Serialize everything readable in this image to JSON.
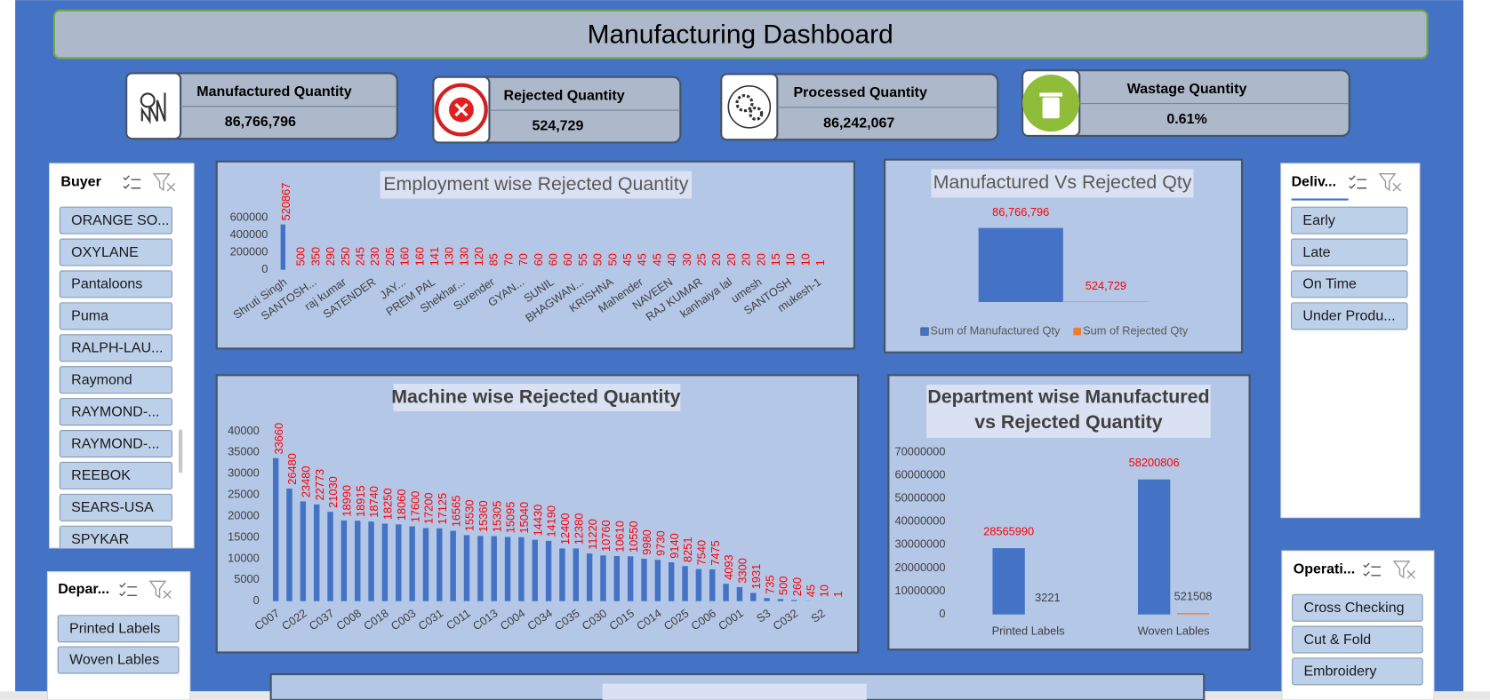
{
  "header": {
    "title": "Manufacturing Dashboard"
  },
  "kpis": [
    {
      "label": "Manufactured Quantity",
      "value": "86,766,796"
    },
    {
      "label": "Rejected Quantity",
      "value": "524,729"
    },
    {
      "label": "Processed Quantity",
      "value": "86,242,067"
    },
    {
      "label": "Wastage Quantity",
      "value": "0.61%"
    }
  ],
  "slicers": [
    {
      "title": "Buyer",
      "items": [
        "ORANGE SO...",
        "OXYLANE",
        "Pantaloons",
        "Puma",
        "RALPH-LAU...",
        "Raymond",
        "RAYMOND-...",
        "RAYMOND-...",
        "REEBOK",
        "SEARS-USA",
        "SPYKAR"
      ]
    },
    {
      "title": "Deliv...",
      "items": [
        "Early",
        "Late",
        "On Time",
        "Under Produ..."
      ]
    },
    {
      "title": "Depar...",
      "items": [
        "Printed Labels",
        "Woven Lables"
      ]
    },
    {
      "title": "Operati...",
      "items": [
        "Cross Checking",
        "Cut  & Fold",
        "Embroidery"
      ]
    }
  ],
  "chart_data": [
    {
      "type": "bar",
      "title": "Employment wise Rejected Quantity",
      "color": "#4472c4",
      "categories": [
        "Shruti Singh",
        null,
        "SANTOSH...",
        null,
        "raj  kumar",
        null,
        "SATENDER",
        null,
        "JAY...",
        null,
        "PREM PAL",
        null,
        "Shekhar...",
        null,
        "Surender",
        null,
        "GYAN...",
        null,
        "SUNIL",
        null,
        "BHAGWAN...",
        null,
        "KRISHNA",
        null,
        "Mahender",
        null,
        "NAVEEN",
        null,
        "RAJ KUMAR",
        null,
        "kanhaiya lal",
        null,
        "umesh",
        null,
        "SANTOSH",
        null,
        "mukesh-1"
      ],
      "values": [
        520867,
        500,
        350,
        290,
        250,
        245,
        230,
        205,
        160,
        160,
        141,
        130,
        130,
        120,
        85,
        70,
        70,
        60,
        60,
        60,
        55,
        50,
        50,
        45,
        45,
        45,
        40,
        30,
        25,
        20,
        20,
        20,
        20,
        15,
        10,
        10,
        1
      ],
      "ylim": [
        0,
        600000
      ],
      "yticks": [
        0,
        200000,
        400000,
        600000
      ]
    },
    {
      "type": "bar",
      "title": "Manufactured Vs Rejected Qty",
      "legend": "bottom",
      "series": [
        {
          "name": "Sum of Manufactured Qty",
          "color": "#4472c4",
          "values": [
            86766796
          ],
          "value_labels": [
            "86,766,796"
          ]
        },
        {
          "name": "Sum of Rejected Qty",
          "color": "#ed7d31",
          "values": [
            524729
          ],
          "value_labels": [
            "524,729"
          ]
        }
      ]
    },
    {
      "type": "bar",
      "title": "Machine wise Rejected Quantity",
      "color": "#4472c4",
      "categories": [
        "C007",
        null,
        "C022",
        null,
        "C037",
        null,
        "C008",
        null,
        "C018",
        null,
        "C003",
        null,
        "C031",
        null,
        "C011",
        null,
        "C013",
        null,
        "C004",
        null,
        "C034",
        null,
        "C035",
        null,
        "C030",
        null,
        "C015",
        null,
        "C014",
        null,
        "C025",
        null,
        "C006",
        null,
        "C001",
        null,
        "S3",
        null,
        "C032",
        null,
        "S2",
        null
      ],
      "values": [
        33660,
        26480,
        23480,
        22773,
        21030,
        18990,
        18915,
        18740,
        18250,
        18060,
        17600,
        17200,
        17125,
        16565,
        15530,
        15360,
        15305,
        15095,
        15040,
        14430,
        14190,
        12400,
        12380,
        11220,
        10760,
        10610,
        10550,
        9980,
        9730,
        9140,
        8251,
        7540,
        7475,
        4093,
        3300,
        1931,
        735,
        500,
        260,
        45,
        10,
        1
      ],
      "ylim": [
        0,
        40000
      ],
      "yticks": [
        0,
        5000,
        10000,
        15000,
        20000,
        25000,
        30000,
        35000,
        40000
      ]
    },
    {
      "type": "bar",
      "title": "Department wise Manufactured vs Rejected Quantity",
      "categories": [
        "Printed Labels",
        "Woven Lables"
      ],
      "series": [
        {
          "name": "Manufactured",
          "color": "#4472c4",
          "values": [
            28565990,
            58200806
          ]
        },
        {
          "name": "Rejected",
          "color": "#ed7d31",
          "values": [
            3221,
            521508
          ]
        }
      ],
      "ylim": [
        0,
        70000000
      ],
      "yticks": [
        0,
        10000000,
        20000000,
        30000000,
        40000000,
        50000000,
        60000000,
        70000000
      ]
    }
  ]
}
